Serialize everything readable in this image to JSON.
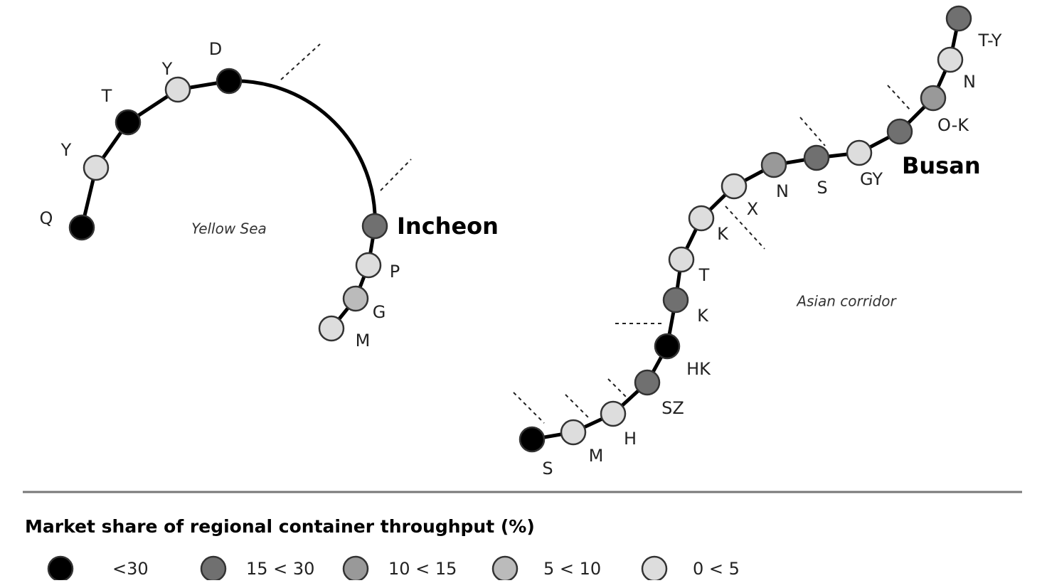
{
  "yellow_sea": {
    "title": "Yellow Sea",
    "nodes": [
      {
        "label": "Q",
        "color": "#000000"
      },
      {
        "label": "Y",
        "color": "#dddddd"
      },
      {
        "label": "T",
        "color": "#000000"
      },
      {
        "label": "Y",
        "color": "#dddddd"
      },
      {
        "label": "D",
        "color": "#000000"
      },
      {
        "label": "Incheon",
        "color": "#707070"
      },
      {
        "label": "P",
        "color": "#dddddd"
      },
      {
        "label": "G",
        "color": "#bbbbbb"
      },
      {
        "label": "M",
        "color": "#dddddd"
      }
    ]
  },
  "asian_corridor": {
    "title": "Asian corridor",
    "nodes": [
      {
        "label": "S",
        "color": "#000000"
      },
      {
        "label": "M",
        "color": "#dddddd"
      },
      {
        "label": "H",
        "color": "#dddddd"
      },
      {
        "label": "SZ",
        "color": "#707070"
      },
      {
        "label": "HK",
        "color": "#000000"
      },
      {
        "label": "K",
        "color": "#707070"
      },
      {
        "label": "T",
        "color": "#dddddd"
      },
      {
        "label": "K",
        "color": "#dddddd"
      },
      {
        "label": "X",
        "color": "#dddddd"
      },
      {
        "label": "N",
        "color": "#999999"
      },
      {
        "label": "S",
        "color": "#707070"
      },
      {
        "label": "GY",
        "color": "#dddddd"
      },
      {
        "label": "Busan",
        "color": "#707070"
      },
      {
        "label": "O-K",
        "color": "#999999"
      },
      {
        "label": "N",
        "color": "#dddddd"
      },
      {
        "label": "T-Y",
        "color": "#707070"
      }
    ]
  },
  "legend": {
    "title": "Market share of regional container throughput (%)",
    "items": [
      {
        "label": "<30",
        "color": "#000000"
      },
      {
        "label": "15 < 30",
        "color": "#707070"
      },
      {
        "label": "10 < 15",
        "color": "#999999"
      },
      {
        "label": "5 < 10",
        "color": "#bbbbbb"
      },
      {
        "label": "0 < 5",
        "color": "#dddddd"
      }
    ]
  }
}
